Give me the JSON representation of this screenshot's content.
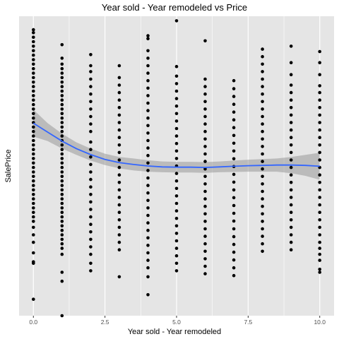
{
  "chart_data": {
    "type": "scatter",
    "title": "Year sold - Year remodeled vs Price",
    "xlabel": "Year sold - Year remodeled",
    "ylabel": "SalePrice",
    "xlim": [
      -0.5,
      10.5
    ],
    "ylim": [
      0,
      1
    ],
    "x_ticks": [
      {
        "value": 0,
        "label": "0.0"
      },
      {
        "value": 2.5,
        "label": "2.5"
      },
      {
        "value": 5,
        "label": "5.0"
      },
      {
        "value": 7.5,
        "label": "7.5"
      },
      {
        "value": 10,
        "label": "10.0"
      }
    ],
    "y_ticks": [],
    "grid": true,
    "legend": "none",
    "colors": {
      "panel": "#e5e5e5",
      "grid": "#ffffff",
      "points": "#000000",
      "smooth_line": "#3366ff",
      "ribbon": "#999999"
    },
    "points_by_x": [
      {
        "x": 0,
        "y": [
          0.955,
          0.945,
          0.93,
          0.915,
          0.9,
          0.885,
          0.87,
          0.855,
          0.84,
          0.825,
          0.81,
          0.795,
          0.78,
          0.765,
          0.75,
          0.735,
          0.72,
          0.705,
          0.69,
          0.675,
          0.66,
          0.645,
          0.63,
          0.615,
          0.6,
          0.585,
          0.57,
          0.555,
          0.54,
          0.525,
          0.51,
          0.495,
          0.48,
          0.465,
          0.45,
          0.435,
          0.42,
          0.405,
          0.39,
          0.375,
          0.36,
          0.345,
          0.33,
          0.315,
          0.295,
          0.27,
          0.245,
          0.21,
          0.175,
          0.055,
          0.18
        ]
      },
      {
        "x": 1,
        "y": [
          0.905,
          0.86,
          0.84,
          0.825,
          0.81,
          0.795,
          0.78,
          0.765,
          0.75,
          0.735,
          0.72,
          0.705,
          0.69,
          0.675,
          0.66,
          0.645,
          0.63,
          0.615,
          0.6,
          0.585,
          0.57,
          0.555,
          0.54,
          0.525,
          0.51,
          0.495,
          0.48,
          0.465,
          0.45,
          0.435,
          0.42,
          0.405,
          0.39,
          0.375,
          0.36,
          0.345,
          0.33,
          0.315,
          0.3,
          0.285,
          0.27,
          0.255,
          0.24,
          0.225,
          0.205,
          0.145,
          0.115,
          0.0
        ]
      },
      {
        "x": 2,
        "y": [
          0.872,
          0.835,
          0.815,
          0.79,
          0.765,
          0.74,
          0.715,
          0.69,
          0.665,
          0.64,
          0.615,
          0.58,
          0.555,
          0.53,
          0.505,
          0.48,
          0.455,
          0.43,
          0.405,
          0.38,
          0.355,
          0.33,
          0.305,
          0.28,
          0.255,
          0.23,
          0.205,
          0.175,
          0.15
        ]
      },
      {
        "x": 3,
        "y": [
          0.835,
          0.795,
          0.77,
          0.745,
          0.72,
          0.695,
          0.67,
          0.645,
          0.62,
          0.595,
          0.57,
          0.545,
          0.52,
          0.495,
          0.47,
          0.445,
          0.42,
          0.395,
          0.37,
          0.345,
          0.32,
          0.295,
          0.27,
          0.245,
          0.22,
          0.13
        ]
      },
      {
        "x": 4,
        "y": [
          0.935,
          0.925,
          0.885,
          0.86,
          0.835,
          0.81,
          0.785,
          0.76,
          0.735,
          0.71,
          0.685,
          0.66,
          0.635,
          0.61,
          0.585,
          0.56,
          0.535,
          0.51,
          0.485,
          0.46,
          0.435,
          0.41,
          0.385,
          0.36,
          0.335,
          0.31,
          0.285,
          0.26,
          0.235,
          0.21,
          0.185,
          0.16,
          0.13,
          0.07
        ]
      },
      {
        "x": 5,
        "y": [
          0.985,
          0.832,
          0.8,
          0.775,
          0.75,
          0.725,
          0.7,
          0.675,
          0.65,
          0.625,
          0.6,
          0.575,
          0.55,
          0.525,
          0.5,
          0.475,
          0.45,
          0.425,
          0.4,
          0.375,
          0.35,
          0.325,
          0.3,
          0.275,
          0.25,
          0.225,
          0.2,
          0.175,
          0.15
        ]
      },
      {
        "x": 6,
        "y": [
          0.918,
          0.79,
          0.765,
          0.74,
          0.715,
          0.69,
          0.665,
          0.64,
          0.615,
          0.59,
          0.565,
          0.54,
          0.515,
          0.49,
          0.465,
          0.44,
          0.415,
          0.39,
          0.365,
          0.34,
          0.315,
          0.29,
          0.265,
          0.24,
          0.215,
          0.19,
          0.165,
          0.14
        ]
      },
      {
        "x": 7,
        "y": [
          0.785,
          0.758,
          0.732,
          0.706,
          0.68,
          0.654,
          0.628,
          0.602,
          0.576,
          0.55,
          0.524,
          0.498,
          0.472,
          0.446,
          0.42,
          0.394,
          0.368,
          0.342,
          0.316,
          0.29,
          0.264,
          0.238,
          0.212,
          0.186,
          0.16,
          0.134
        ]
      },
      {
        "x": 8,
        "y": [
          0.89,
          0.865,
          0.84,
          0.815,
          0.79,
          0.765,
          0.74,
          0.715,
          0.69,
          0.665,
          0.64,
          0.615,
          0.59,
          0.565,
          0.54,
          0.515,
          0.49,
          0.465,
          0.44,
          0.415,
          0.39,
          0.365,
          0.34,
          0.315,
          0.29,
          0.265,
          0.24,
          0.215
        ]
      },
      {
        "x": 9,
        "y": [
          0.9,
          0.845,
          0.805,
          0.77,
          0.745,
          0.72,
          0.695,
          0.67,
          0.645,
          0.62,
          0.595,
          0.57,
          0.545,
          0.52,
          0.495,
          0.47,
          0.445,
          0.42,
          0.395,
          0.37,
          0.345,
          0.32,
          0.295,
          0.27,
          0.245,
          0.22
        ]
      },
      {
        "x": 10,
        "y": [
          0.882,
          0.845,
          0.805,
          0.768,
          0.745,
          0.72,
          0.695,
          0.67,
          0.645,
          0.62,
          0.595,
          0.57,
          0.545,
          0.52,
          0.495,
          0.47,
          0.445,
          0.42,
          0.395,
          0.37,
          0.345,
          0.32,
          0.295,
          0.27,
          0.245,
          0.225,
          0.205,
          0.185,
          0.155,
          0.145
        ]
      }
    ],
    "smooth_fit": {
      "x": [
        0,
        0.5,
        1,
        1.5,
        2,
        2.5,
        3,
        3.5,
        4,
        4.5,
        5,
        5.5,
        6,
        6.5,
        7,
        7.5,
        8,
        8.5,
        9,
        9.5,
        10
      ],
      "y": [
        0.643,
        0.613,
        0.583,
        0.558,
        0.538,
        0.522,
        0.511,
        0.505,
        0.5,
        0.497,
        0.496,
        0.496,
        0.495,
        0.497,
        0.499,
        0.501,
        0.502,
        0.503,
        0.503,
        0.502,
        0.499
      ],
      "ci_half_width": [
        0.045,
        0.03,
        0.025,
        0.021,
        0.02,
        0.019,
        0.019,
        0.02,
        0.019,
        0.018,
        0.018,
        0.018,
        0.018,
        0.018,
        0.019,
        0.02,
        0.021,
        0.022,
        0.027,
        0.035,
        0.045
      ]
    }
  }
}
